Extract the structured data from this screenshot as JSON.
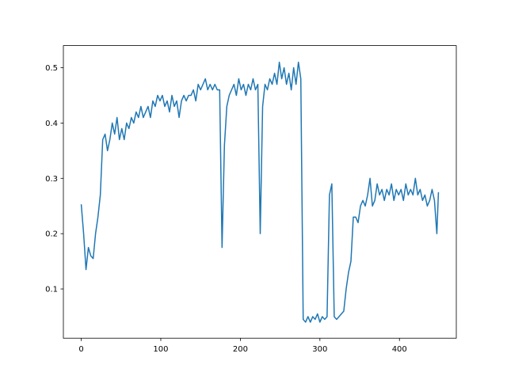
{
  "chart_data": {
    "type": "line",
    "x": [
      0,
      3,
      6,
      9,
      12,
      15,
      18,
      21,
      24,
      27,
      30,
      33,
      36,
      39,
      42,
      45,
      48,
      51,
      54,
      57,
      60,
      63,
      66,
      69,
      72,
      75,
      78,
      81,
      84,
      87,
      90,
      93,
      96,
      99,
      102,
      105,
      108,
      111,
      114,
      117,
      120,
      123,
      126,
      129,
      132,
      135,
      138,
      141,
      144,
      147,
      150,
      153,
      156,
      159,
      162,
      165,
      168,
      171,
      174,
      177,
      180,
      183,
      186,
      189,
      192,
      195,
      198,
      201,
      204,
      207,
      210,
      213,
      216,
      219,
      222,
      225,
      228,
      231,
      234,
      237,
      240,
      243,
      246,
      249,
      252,
      255,
      258,
      261,
      264,
      267,
      270,
      273,
      276,
      279,
      282,
      285,
      288,
      291,
      294,
      297,
      300,
      303,
      306,
      309,
      312,
      315,
      318,
      321,
      324,
      327,
      330,
      333,
      336,
      339,
      342,
      345,
      348,
      351,
      354,
      357,
      360,
      363,
      366,
      369,
      372,
      375,
      378,
      381,
      384,
      387,
      390,
      393,
      396,
      399,
      402,
      405,
      408,
      411,
      414,
      417,
      420,
      423,
      426,
      429,
      432,
      435,
      438,
      441,
      444,
      447,
      449
    ],
    "series": [
      {
        "color": "#1f77b4",
        "values": [
          0.253,
          0.2,
          0.135,
          0.175,
          0.16,
          0.155,
          0.2,
          0.23,
          0.27,
          0.37,
          0.38,
          0.35,
          0.37,
          0.4,
          0.38,
          0.41,
          0.37,
          0.39,
          0.37,
          0.4,
          0.39,
          0.41,
          0.4,
          0.42,
          0.41,
          0.43,
          0.41,
          0.42,
          0.43,
          0.41,
          0.44,
          0.43,
          0.45,
          0.44,
          0.45,
          0.43,
          0.44,
          0.42,
          0.45,
          0.43,
          0.44,
          0.41,
          0.44,
          0.45,
          0.44,
          0.45,
          0.45,
          0.46,
          0.44,
          0.47,
          0.46,
          0.47,
          0.48,
          0.46,
          0.47,
          0.46,
          0.47,
          0.46,
          0.46,
          0.175,
          0.36,
          0.43,
          0.45,
          0.46,
          0.47,
          0.45,
          0.48,
          0.46,
          0.47,
          0.45,
          0.47,
          0.46,
          0.48,
          0.46,
          0.47,
          0.2,
          0.43,
          0.47,
          0.46,
          0.48,
          0.47,
          0.49,
          0.47,
          0.51,
          0.48,
          0.5,
          0.47,
          0.49,
          0.46,
          0.5,
          0.47,
          0.51,
          0.48,
          0.045,
          0.04,
          0.05,
          0.04,
          0.05,
          0.045,
          0.055,
          0.04,
          0.05,
          0.045,
          0.05,
          0.27,
          0.29,
          0.05,
          0.045,
          0.05,
          0.055,
          0.06,
          0.1,
          0.13,
          0.15,
          0.23,
          0.23,
          0.22,
          0.25,
          0.26,
          0.25,
          0.27,
          0.3,
          0.25,
          0.26,
          0.29,
          0.27,
          0.28,
          0.26,
          0.28,
          0.27,
          0.29,
          0.26,
          0.28,
          0.27,
          0.28,
          0.26,
          0.29,
          0.27,
          0.28,
          0.27,
          0.3,
          0.27,
          0.28,
          0.26,
          0.27,
          0.25,
          0.26,
          0.28,
          0.26,
          0.2,
          0.275
        ]
      }
    ],
    "xlim": [
      -22.45,
      471.45
    ],
    "xticks": [
      0,
      100,
      200,
      300,
      400
    ],
    "ylim": [
      0.011,
      0.54
    ],
    "yticks": [
      0.1,
      0.2,
      0.3,
      0.4,
      0.5
    ]
  }
}
